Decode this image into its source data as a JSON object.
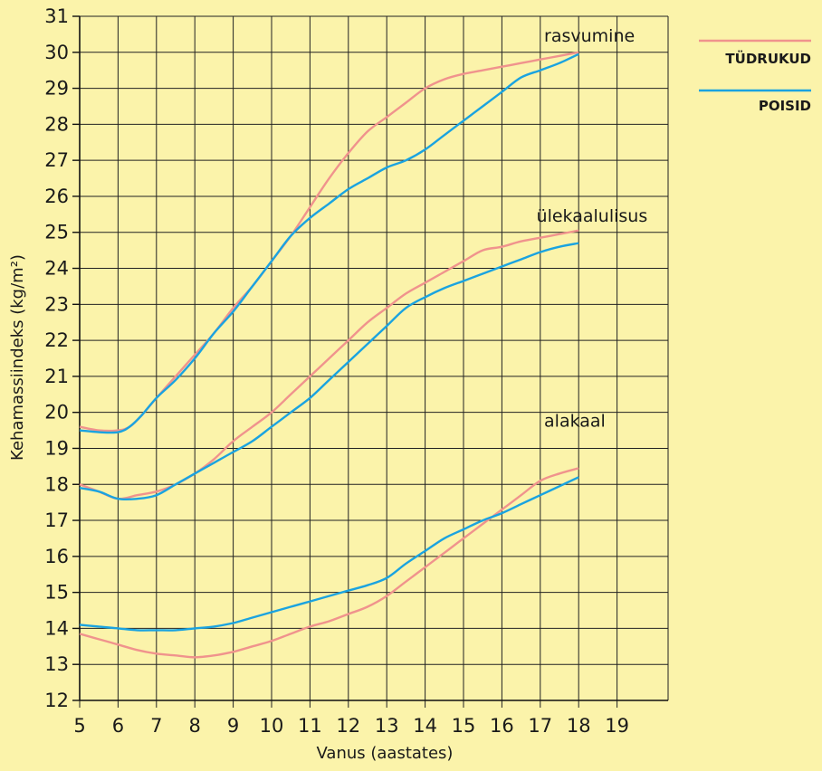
{
  "chart_data": {
    "type": "line",
    "xlabel": "Vanus (aastates)",
    "ylabel": "Kehamassiindeks (kg/m²)",
    "xlim": [
      5,
      19
    ],
    "ylim": [
      12,
      31
    ],
    "x_ticks": [
      "5",
      "6",
      "7",
      "8",
      "9",
      "10",
      "11",
      "12",
      "13",
      "14",
      "15",
      "16",
      "17",
      "18",
      "19"
    ],
    "y_ticks": [
      "12",
      "13",
      "14",
      "15",
      "16",
      "17",
      "18",
      "19",
      "20",
      "21",
      "22",
      "23",
      "24",
      "25",
      "26",
      "27",
      "28",
      "29",
      "30",
      "31"
    ],
    "grid": true,
    "legend_position": "top-right",
    "legend": [
      {
        "label": "TÜDRUKUD",
        "color": "#f0938d"
      },
      {
        "label": "POISID",
        "color": "#1aa3e0"
      }
    ],
    "curve_labels": [
      {
        "text": "rasvumine",
        "x": 17.1,
        "y": 30.3
      },
      {
        "text": "ülekaalulisus",
        "x": 16.9,
        "y": 25.3
      },
      {
        "text": "alakaal",
        "x": 17.1,
        "y": 19.6
      }
    ],
    "series": [
      {
        "group": "rasvumine",
        "legend": "TÜDRUKUD",
        "color": "#f0938d",
        "x": [
          5,
          5.5,
          6,
          6.3,
          6.6,
          7,
          7.5,
          8,
          8.5,
          9,
          9.5,
          10,
          10.5,
          11,
          11.5,
          12,
          12.5,
          13,
          13.5,
          14,
          14.5,
          15,
          15.5,
          16,
          16.5,
          17,
          17.5,
          18
        ],
        "y": [
          19.6,
          19.5,
          19.5,
          19.6,
          19.9,
          20.4,
          21.0,
          21.6,
          22.2,
          22.9,
          23.5,
          24.2,
          24.9,
          25.7,
          26.5,
          27.2,
          27.8,
          28.2,
          28.6,
          29.0,
          29.25,
          29.4,
          29.5,
          29.6,
          29.7,
          29.8,
          29.9,
          30.0
        ]
      },
      {
        "group": "rasvumine",
        "legend": "POISID",
        "color": "#1aa3e0",
        "x": [
          5,
          5.5,
          6,
          6.3,
          6.6,
          7,
          7.5,
          8,
          8.5,
          9,
          9.5,
          10,
          10.5,
          11,
          11.5,
          12,
          12.5,
          13,
          13.5,
          14,
          14.5,
          15,
          15.5,
          16,
          16.5,
          17,
          17.5,
          18
        ],
        "y": [
          19.5,
          19.45,
          19.45,
          19.6,
          19.9,
          20.4,
          20.9,
          21.5,
          22.2,
          22.8,
          23.5,
          24.2,
          24.9,
          25.4,
          25.8,
          26.2,
          26.5,
          26.8,
          27.0,
          27.3,
          27.7,
          28.1,
          28.5,
          28.9,
          29.3,
          29.5,
          29.7,
          29.95
        ]
      },
      {
        "group": "ülekaalulisus",
        "legend": "TÜDRUKUD",
        "color": "#f0938d",
        "x": [
          5,
          5.5,
          6,
          6.5,
          7,
          7.5,
          8,
          8.5,
          9,
          9.5,
          10,
          10.5,
          11,
          11.5,
          12,
          12.5,
          13,
          13.5,
          14,
          14.5,
          15,
          15.5,
          16,
          16.5,
          17,
          17.5,
          18
        ],
        "y": [
          18.0,
          17.8,
          17.6,
          17.7,
          17.8,
          18.0,
          18.3,
          18.7,
          19.2,
          19.6,
          20.0,
          20.5,
          21.0,
          21.5,
          22.0,
          22.5,
          22.9,
          23.3,
          23.6,
          23.9,
          24.2,
          24.5,
          24.6,
          24.75,
          24.85,
          24.95,
          25.05
        ]
      },
      {
        "group": "ülekaalulisus",
        "legend": "POISID",
        "color": "#1aa3e0",
        "x": [
          5,
          5.5,
          6,
          6.5,
          7,
          7.5,
          8,
          8.5,
          9,
          9.5,
          10,
          10.5,
          11,
          11.5,
          12,
          12.5,
          13,
          13.5,
          14,
          14.5,
          15,
          15.5,
          16,
          16.5,
          17,
          17.5,
          18
        ],
        "y": [
          17.9,
          17.8,
          17.6,
          17.6,
          17.7,
          18.0,
          18.3,
          18.6,
          18.9,
          19.2,
          19.6,
          20.0,
          20.4,
          20.9,
          21.4,
          21.9,
          22.4,
          22.9,
          23.2,
          23.45,
          23.65,
          23.85,
          24.05,
          24.25,
          24.45,
          24.6,
          24.7
        ]
      },
      {
        "group": "alakaal",
        "legend": "TÜDRUKUD",
        "color": "#f0938d",
        "x": [
          5,
          5.5,
          6,
          6.5,
          7,
          7.5,
          8,
          8.5,
          9,
          9.5,
          10,
          10.5,
          11,
          11.5,
          12,
          12.5,
          13,
          13.5,
          14,
          14.5,
          15,
          15.5,
          16,
          16.5,
          17,
          17.5,
          18
        ],
        "y": [
          13.85,
          13.7,
          13.55,
          13.4,
          13.3,
          13.25,
          13.2,
          13.25,
          13.35,
          13.5,
          13.65,
          13.85,
          14.05,
          14.2,
          14.4,
          14.6,
          14.9,
          15.3,
          15.7,
          16.1,
          16.5,
          16.9,
          17.3,
          17.7,
          18.1,
          18.3,
          18.45
        ]
      },
      {
        "group": "alakaal",
        "legend": "POISID",
        "color": "#1aa3e0",
        "x": [
          5,
          5.5,
          6,
          6.5,
          7,
          7.5,
          8,
          8.5,
          9,
          9.5,
          10,
          10.5,
          11,
          11.5,
          12,
          12.5,
          13,
          13.5,
          14,
          14.5,
          15,
          15.5,
          16,
          16.5,
          17,
          17.5,
          18
        ],
        "y": [
          14.1,
          14.05,
          14.0,
          13.95,
          13.95,
          13.95,
          14.0,
          14.05,
          14.15,
          14.3,
          14.45,
          14.6,
          14.75,
          14.9,
          15.05,
          15.2,
          15.4,
          15.8,
          16.15,
          16.5,
          16.75,
          17.0,
          17.2,
          17.45,
          17.7,
          17.95,
          18.2
        ]
      }
    ]
  }
}
